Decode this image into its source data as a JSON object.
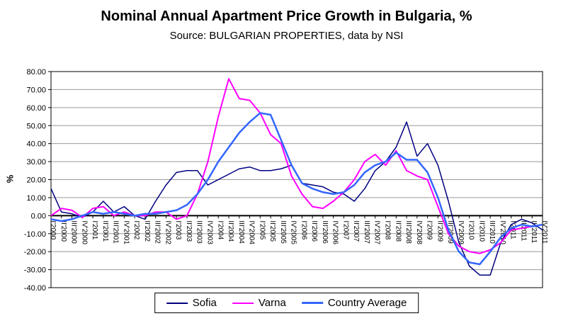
{
  "chart_data": {
    "type": "line",
    "title": "Nominal Annual Apartment Price Growth in Bulgaria, %",
    "subtitle": "Source: BULGARIAN PROPERTIES, data by NSI",
    "ylabel": "%",
    "xlabel": "",
    "ylim": [
      -40,
      80
    ],
    "ytick_step": 10,
    "ytick_format": "two_decimals",
    "grid": true,
    "legend_position": "bottom",
    "categories": [
      "I'2000",
      "II'2000",
      "III'2000",
      "IV'2000",
      "I'2001",
      "II'2001",
      "III'2001",
      "IV'2001",
      "I'2002",
      "II'2002",
      "III'2002",
      "IV'2002",
      "I'2003",
      "II'2003",
      "III'2003",
      "IV'2003",
      "I'2004",
      "II'2004",
      "III'2004",
      "IV'2004",
      "I'2005",
      "II'2005",
      "III'2005",
      "IV'2005",
      "I'2006",
      "II'2006",
      "III'2006",
      "IV'2006",
      "I'2007",
      "II'2007",
      "III'2007",
      "IV'2007",
      "I'2008",
      "II'2008",
      "III'2008",
      "IV'2008",
      "I'2009",
      "II'2009",
      "III'2009",
      "IV'2009",
      "I'2010",
      "II'2010",
      "III'2010",
      "IV'2010",
      "I'2011",
      "II'2011",
      "III'2011",
      "IV'2011"
    ],
    "series": [
      {
        "name": "Sofia",
        "color": "#000080",
        "stroke_width": 1.5,
        "values": [
          15,
          2,
          1,
          -1,
          2,
          8,
          2,
          5,
          0,
          -2,
          8,
          17,
          24,
          25,
          25,
          17,
          20,
          23,
          26,
          27,
          25,
          25,
          26,
          28,
          18,
          17,
          16,
          13,
          12,
          8,
          15,
          25,
          30,
          38,
          52,
          33,
          40,
          28,
          8,
          -15,
          -28,
          -33,
          -33,
          -15,
          -5,
          -2,
          -4,
          -8
        ]
      },
      {
        "name": "Varna",
        "color": "#FF00FF",
        "stroke_width": 2,
        "values": [
          0,
          4,
          3,
          -1,
          4,
          5,
          0,
          2,
          0,
          0,
          2,
          2,
          -2,
          0,
          12,
          30,
          55,
          76,
          65,
          64,
          57,
          45,
          40,
          22,
          12,
          5,
          4,
          8,
          13,
          20,
          30,
          34,
          28,
          36,
          25,
          22,
          20,
          5,
          -10,
          -17,
          -20,
          -21,
          -19,
          -15,
          -8,
          -7,
          -6,
          -5
        ]
      },
      {
        "name": "Country Average",
        "color": "#3366FF",
        "stroke_width": 2.5,
        "values": [
          -2,
          -3,
          -2,
          0,
          2,
          1,
          2,
          1,
          0,
          1,
          1,
          2,
          3,
          6,
          12,
          20,
          30,
          38,
          46,
          52,
          57,
          56,
          42,
          28,
          18,
          15,
          13,
          12,
          13,
          17,
          24,
          28,
          30,
          35,
          31,
          31,
          24,
          10,
          -8,
          -20,
          -26,
          -27,
          -20,
          -12,
          -7,
          -5,
          -6,
          -5
        ]
      }
    ]
  }
}
